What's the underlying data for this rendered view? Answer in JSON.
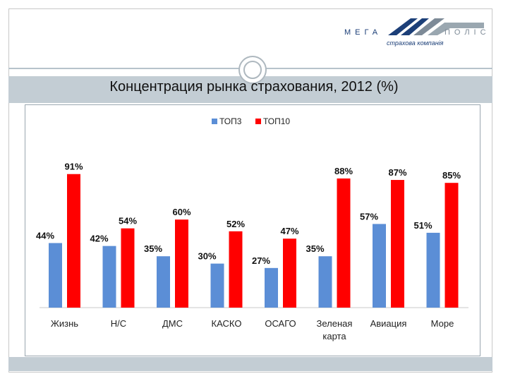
{
  "logo": {
    "left_word": "МЕГА",
    "right_word": "ПОЛІС",
    "subtitle": "страхова компанія"
  },
  "header": {
    "title": "Концентрация рынка страхования, 2012 (%)"
  },
  "colors": {
    "top3": "#5b8ed6",
    "top10": "#ff0000"
  },
  "chart_data": {
    "type": "bar",
    "title": "Концентрация рынка страхования, 2012 (%)",
    "categories": [
      "Жизнь",
      "Н/С",
      "ДМС",
      "КАСКО",
      "ОСАГО",
      "Зеленая карта",
      "Авиация",
      "Море"
    ],
    "series": [
      {
        "name": "ТОП3",
        "values": [
          44,
          42,
          35,
          30,
          27,
          35,
          57,
          51
        ],
        "labels": [
          "44%",
          "42%",
          "35%",
          "30%",
          "27%",
          "35%",
          "57%",
          "51%"
        ]
      },
      {
        "name": "ТОП10",
        "values": [
          91,
          54,
          60,
          52,
          47,
          88,
          87,
          85
        ],
        "labels": [
          "91%",
          "54%",
          "60%",
          "52%",
          "47%",
          "88%",
          "87%",
          "85%"
        ]
      }
    ],
    "ylim": [
      0,
      100
    ],
    "xlabel": "",
    "ylabel": "",
    "legend": "top-center"
  }
}
